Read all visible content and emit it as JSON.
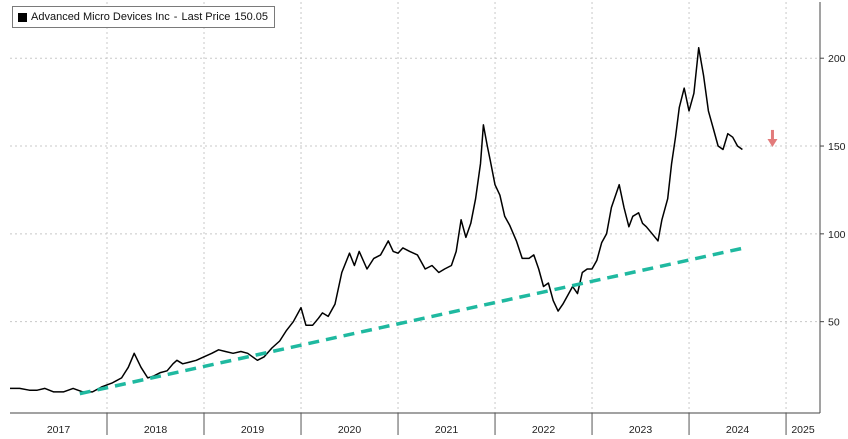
{
  "chart_data": {
    "type": "line",
    "legend": {
      "label": "Advanced Micro Devices Inc",
      "separator": "-",
      "value_label": "Last Price",
      "value": "150.05"
    },
    "y_ticks": [
      50,
      100,
      150,
      200
    ],
    "ylim": [
      -2,
      232
    ],
    "x_ticks": [
      "2017",
      "2018",
      "2019",
      "2020",
      "2021",
      "2022",
      "2023",
      "2024",
      "2025"
    ],
    "xlim": [
      2017.0,
      2025.35
    ],
    "grid": true,
    "colors": {
      "price": "#000000",
      "trend": "#1fb9a0",
      "arrow": "#e27b7b",
      "grid": "#c8c8c8"
    },
    "series": [
      {
        "id": "price",
        "x": [
          2017.0,
          2017.1,
          2017.2,
          2017.28,
          2017.36,
          2017.45,
          2017.55,
          2017.65,
          2017.75,
          2017.85,
          2017.95,
          2018.05,
          2018.15,
          2018.22,
          2018.28,
          2018.35,
          2018.42,
          2018.48,
          2018.55,
          2018.62,
          2018.68,
          2018.72,
          2018.78,
          2018.85,
          2018.92,
          2019.0,
          2019.08,
          2019.15,
          2019.22,
          2019.3,
          2019.38,
          2019.45,
          2019.5,
          2019.55,
          2019.62,
          2019.7,
          2019.78,
          2019.85,
          2019.92,
          2020.0,
          2020.05,
          2020.12,
          2020.18,
          2020.22,
          2020.28,
          2020.35,
          2020.42,
          2020.5,
          2020.55,
          2020.6,
          2020.68,
          2020.75,
          2020.82,
          2020.9,
          2020.95,
          2021.0,
          2021.05,
          2021.12,
          2021.2,
          2021.28,
          2021.35,
          2021.42,
          2021.48,
          2021.55,
          2021.6,
          2021.65,
          2021.7,
          2021.75,
          2021.8,
          2021.85,
          2021.88,
          2021.92,
          2021.95,
          2022.0,
          2022.05,
          2022.1,
          2022.15,
          2022.22,
          2022.28,
          2022.35,
          2022.4,
          2022.45,
          2022.5,
          2022.55,
          2022.6,
          2022.65,
          2022.7,
          2022.75,
          2022.8,
          2022.85,
          2022.9,
          2022.95,
          2023.0,
          2023.05,
          2023.1,
          2023.15,
          2023.2,
          2023.28,
          2023.33,
          2023.38,
          2023.42,
          2023.48,
          2023.52,
          2023.56,
          2023.62,
          2023.68,
          2023.72,
          2023.78,
          2023.82,
          2023.86,
          2023.9,
          2023.95,
          2024.0,
          2024.05,
          2024.1,
          2024.15,
          2024.2,
          2024.25,
          2024.3,
          2024.35,
          2024.4,
          2024.45,
          2024.5,
          2024.55
        ],
        "values": [
          12,
          12,
          11,
          11,
          12,
          10,
          10,
          12,
          10,
          10,
          13,
          15,
          18,
          24,
          32,
          24,
          18,
          19,
          21,
          22,
          26,
          28,
          26,
          27,
          28,
          30,
          32,
          34,
          33,
          32,
          33,
          32,
          30,
          28,
          30,
          35,
          39,
          45,
          50,
          58,
          48,
          48,
          52,
          55,
          53,
          60,
          78,
          89,
          82,
          90,
          80,
          86,
          88,
          96,
          90,
          89,
          92,
          90,
          88,
          80,
          82,
          78,
          80,
          82,
          90,
          108,
          98,
          106,
          120,
          140,
          162,
          150,
          142,
          128,
          122,
          110,
          105,
          96,
          86,
          86,
          88,
          80,
          70,
          72,
          62,
          56,
          60,
          65,
          70,
          66,
          78,
          80,
          80,
          85,
          95,
          100,
          115,
          128,
          115,
          104,
          110,
          112,
          106,
          104,
          100,
          96,
          108,
          120,
          140,
          155,
          172,
          183,
          170,
          180,
          206,
          190,
          170,
          160,
          150,
          148,
          157,
          155,
          150,
          148
        ]
      },
      {
        "id": "trend",
        "style": "dashed",
        "x": [
          2017.72,
          2024.57
        ],
        "values": [
          9,
          92
        ]
      }
    ],
    "annotations": [
      {
        "type": "down-arrow",
        "x": 2024.86,
        "y": 150.05
      }
    ]
  }
}
